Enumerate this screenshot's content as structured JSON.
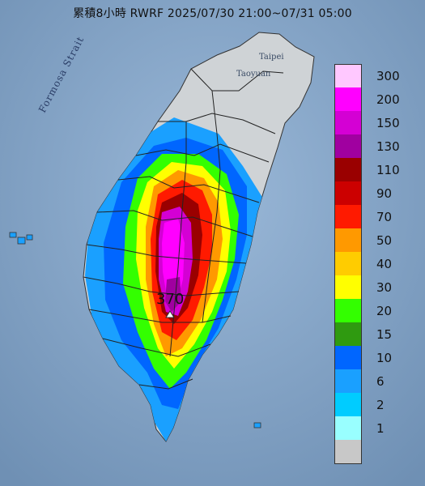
{
  "title": "累積8小時 RWRF 2025/07/30 21:00~07/31 05:00",
  "map_labels": {
    "strait": "Formosa Strait",
    "taipei": "Taipei",
    "taoyuan": "Taoyuan",
    "peak_value": "370"
  },
  "legend": {
    "items": [
      {
        "label": "300",
        "color": "#ffc8ff"
      },
      {
        "label": "200",
        "color": "#ff00ff"
      },
      {
        "label": "150",
        "color": "#d400d4"
      },
      {
        "label": "130",
        "color": "#a000a0"
      },
      {
        "label": "110",
        "color": "#9a0000"
      },
      {
        "label": "90",
        "color": "#cc0000"
      },
      {
        "label": "70",
        "color": "#ff1a00"
      },
      {
        "label": "50",
        "color": "#ff9900"
      },
      {
        "label": "40",
        "color": "#ffcc00"
      },
      {
        "label": "30",
        "color": "#ffff00"
      },
      {
        "label": "20",
        "color": "#33ff00"
      },
      {
        "label": "15",
        "color": "#2f9a10"
      },
      {
        "label": "10",
        "color": "#0066ff"
      },
      {
        "label": "6",
        "color": "#1aa0ff"
      },
      {
        "label": "2",
        "color": "#00ccff"
      },
      {
        "label": "1",
        "color": "#99ffff"
      },
      {
        "label": "",
        "color": "#c8c8c8"
      }
    ]
  }
}
